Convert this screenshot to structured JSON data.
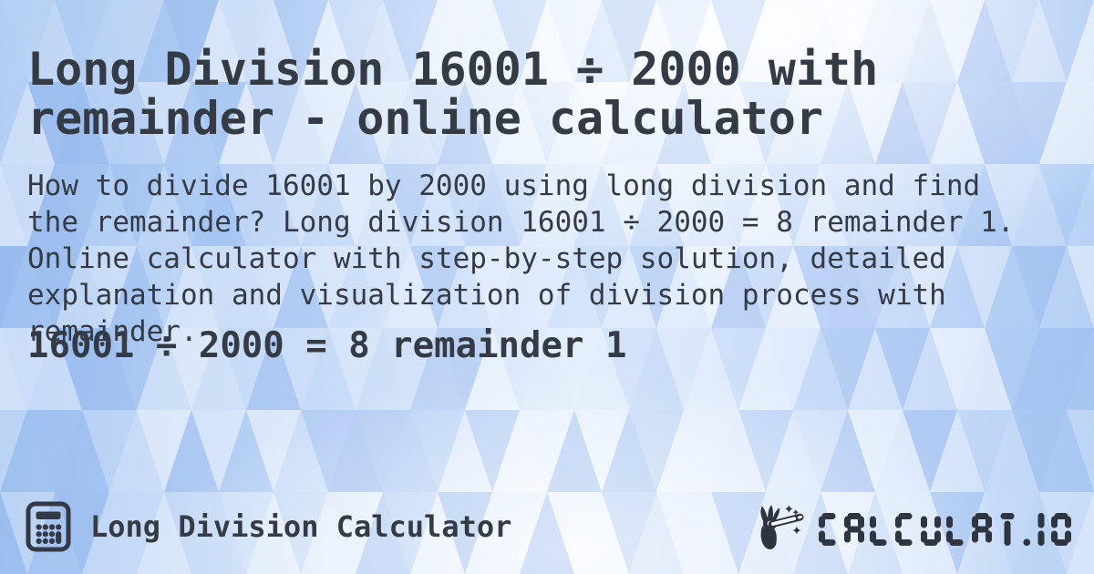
{
  "header": {
    "title": "Long Division 16001 ÷ 2000 with remainder - online calculator"
  },
  "main": {
    "description": "How to divide 16001 by 2000 using long division and find the remainder? Long division 16001 ÷ 2000 = 8 remainder 1. Online calculator with step-by-step solution, detailed explanation and visualization of division process with remainder.",
    "result": "16001 ÷ 2000 = 8 remainder 1"
  },
  "footer": {
    "app_name": "Long Division Calculator",
    "app_icon": "calculator-icon",
    "logo_icon": "hand-magic-wand-icon",
    "logo_text": "CALCULAT.IO"
  },
  "colors": {
    "text": "#353b45",
    "logo": "#2e3440",
    "icon": "#333945",
    "background_base": "#bcd4f6",
    "background_deep": "#9dc0f0",
    "background_light": "#ffffff"
  }
}
